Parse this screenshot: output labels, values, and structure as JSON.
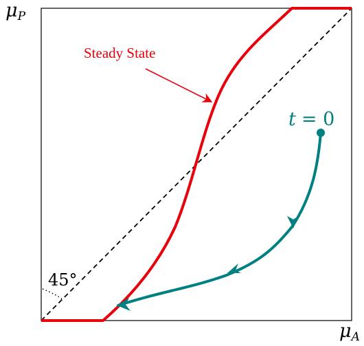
{
  "axes": {
    "y_label": "μ",
    "y_sub": "P",
    "x_label": "μ",
    "x_sub": "A"
  },
  "diagonal": {
    "angle_label": "45°"
  },
  "steady_state": {
    "label": "Steady State",
    "color": "#e8000b"
  },
  "trajectory": {
    "start_label_var": "t",
    "start_label_eq": "= 0",
    "color": "#008080"
  },
  "frame_color": "#000000"
}
